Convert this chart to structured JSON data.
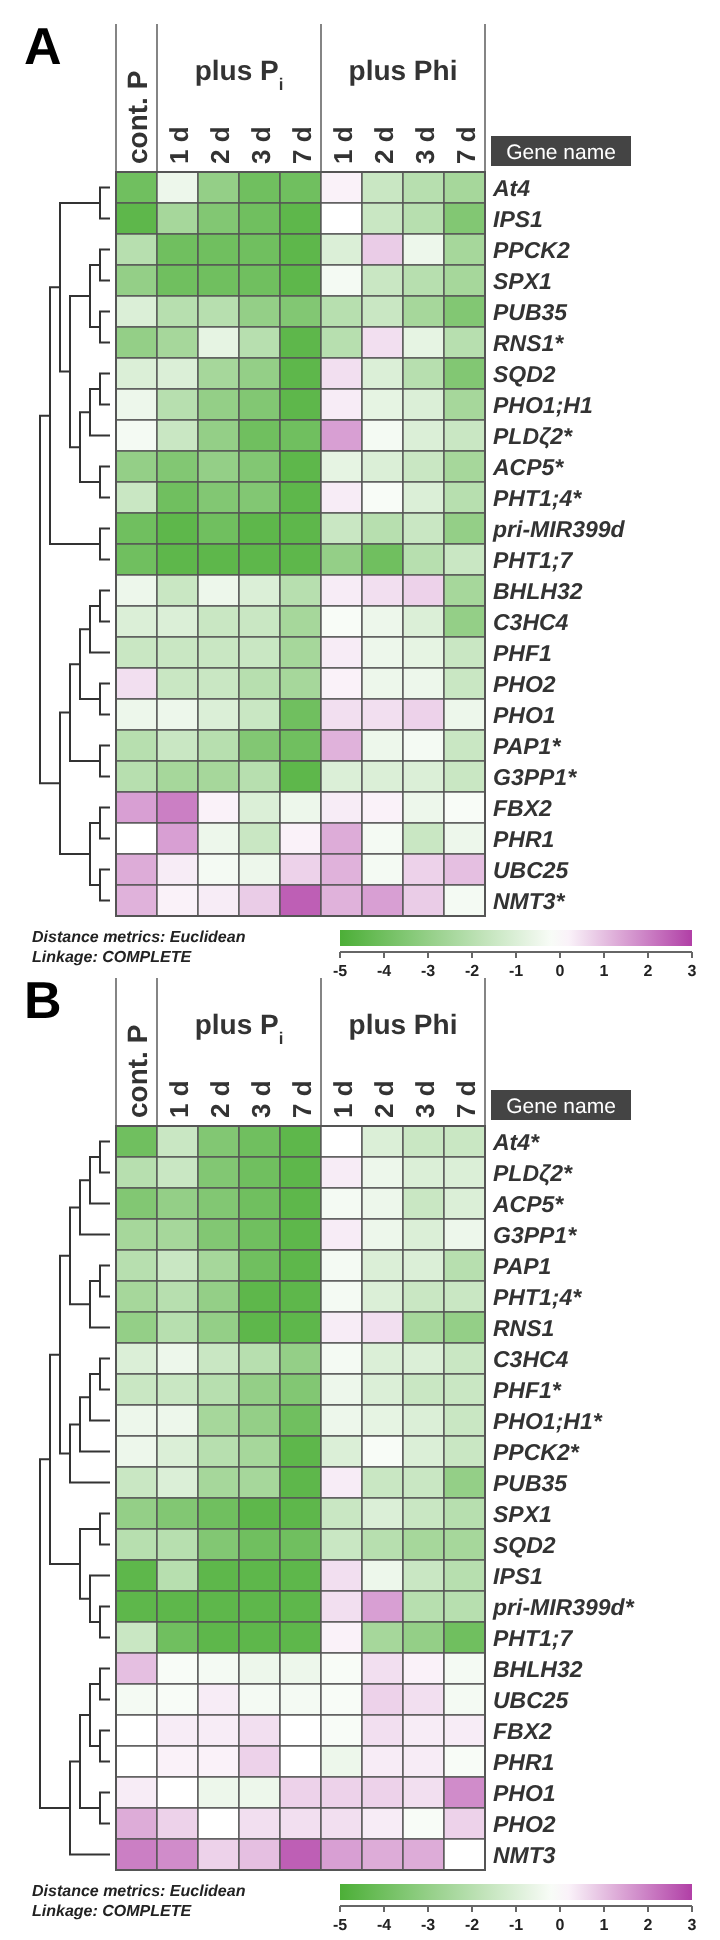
{
  "chart_data": [
    {
      "type": "heatmap",
      "title": "A",
      "ylabel": "Gene name",
      "categories": [
        "cont. P",
        "1 d",
        "2 d",
        "3 d",
        "7 d",
        "1 d",
        "2 d",
        "3 d",
        "7 d"
      ],
      "y_categories": [
        "At4",
        "IPS1",
        "PPCK2",
        "SPX1",
        "PUB35",
        "RNS1*",
        "SQD2",
        "PHO1;H1",
        "PLDζ2*",
        "ACP5*",
        "PHT1;4*",
        "pri-MIR399d",
        "PHT1;7",
        "BHLH32",
        "C3HC4",
        "PHF1",
        "PHO2",
        "PHO1",
        "PAP1*",
        "G3PP1*",
        "FBX2",
        "PHR1",
        "UBC25",
        "NMT3*"
      ],
      "cells": [
        [
          -4,
          -0.5,
          -3,
          -4,
          -4,
          0.2,
          -1.5,
          -2,
          -2.5
        ],
        [
          -4.5,
          -2.5,
          -3.5,
          -4,
          -4.5,
          0,
          -1.5,
          -2,
          -3.5
        ],
        [
          -2,
          -4,
          -4,
          -4,
          -4.5,
          -1,
          0.8,
          -0.5,
          -2.5
        ],
        [
          -3,
          -4,
          -4,
          -4,
          -4.5,
          -0.3,
          -1.5,
          -2,
          -2.5
        ],
        [
          -1,
          -2,
          -2,
          -3,
          -3.5,
          -2,
          -1.5,
          -2.5,
          -3.5
        ],
        [
          -3,
          -2.5,
          -0.7,
          -2,
          -4.5,
          -2,
          0.5,
          -0.7,
          -2
        ],
        [
          -1,
          -1,
          -2.5,
          -3,
          -4.5,
          0.5,
          -1,
          -2,
          -3.5
        ],
        [
          -0.5,
          -2,
          -3,
          -3.5,
          -4.5,
          0.3,
          -0.7,
          -1,
          -2.5
        ],
        [
          -0.3,
          -1.5,
          -3,
          -4,
          -4,
          1.5,
          -0.3,
          -1,
          -1.5
        ],
        [
          -3,
          -3.5,
          -3,
          -3.5,
          -4.5,
          -0.7,
          -1,
          -1.5,
          -2.5
        ],
        [
          -1.5,
          -4,
          -3.5,
          -3.5,
          -4.5,
          0.3,
          -0.2,
          -1,
          -2
        ],
        [
          -4,
          -4.5,
          -4,
          -4.5,
          -4.5,
          -1.5,
          -2,
          -1.5,
          -3
        ],
        [
          -4,
          -4.5,
          -4.5,
          -4.5,
          -4.5,
          -3,
          -4,
          -2,
          -1.5
        ],
        [
          -0.5,
          -1.5,
          -0.5,
          -1,
          -2,
          0.3,
          0.5,
          0.7,
          -2.5
        ],
        [
          -1,
          -1,
          -1.5,
          -1.5,
          -2.5,
          -0.2,
          -0.5,
          -1,
          -3
        ],
        [
          -1.5,
          -1.5,
          -1.5,
          -1.5,
          -2.5,
          0.3,
          -0.5,
          -0.7,
          -1.5
        ],
        [
          0.5,
          -1.5,
          -1.5,
          -2,
          -2.5,
          0.2,
          -0.5,
          -0.5,
          -1.5
        ],
        [
          -0.5,
          -0.5,
          -1,
          -1.5,
          -4,
          0.5,
          0.5,
          0.7,
          -0.5
        ],
        [
          -2,
          -1.5,
          -2,
          -3.5,
          -4,
          1.2,
          -0.5,
          -0.3,
          -1.5
        ],
        [
          -2,
          -2.5,
          -2.5,
          -2,
          -4.5,
          -1,
          -1,
          -1,
          -1.5
        ],
        [
          1.5,
          2,
          0.2,
          -1,
          -0.5,
          0.3,
          0.2,
          -0.5,
          -0.2
        ],
        [
          0,
          1.5,
          -0.5,
          -1.5,
          0.2,
          1.3,
          -0.3,
          -1.5,
          -0.5
        ],
        [
          1.3,
          0.3,
          -0.3,
          -0.5,
          0.7,
          1.2,
          -0.3,
          0.7,
          1
        ],
        [
          1.2,
          0.2,
          0.3,
          0.8,
          2.5,
          1.2,
          1.5,
          0.8,
          -0.3
        ]
      ],
      "clim": [
        -5,
        3
      ],
      "cticks": [
        -5,
        -4,
        -3,
        -2,
        -1,
        0,
        1,
        2,
        3
      ],
      "annotations": [
        "plus P$_{i}$",
        "plus Phi",
        "Distance metrics: Euclidean",
        "Linkage: COMPLETE"
      ]
    },
    {
      "type": "heatmap",
      "title": "B",
      "ylabel": "Gene name",
      "categories": [
        "cont. P",
        "1 d",
        "2 d",
        "3 d",
        "7 d",
        "1 d",
        "2 d",
        "3 d",
        "7 d"
      ],
      "y_categories": [
        "At4*",
        "PLDζ2*",
        "ACP5*",
        "G3PP1*",
        "PAP1",
        "PHT1;4*",
        "RNS1",
        "C3HC4",
        "PHF1*",
        "PHO1;H1*",
        "PPCK2*",
        "PUB35",
        "SPX1",
        "SQD2",
        "IPS1",
        "pri-MIR399d*",
        "PHT1;7",
        "BHLH32",
        "UBC25",
        "FBX2",
        "PHR1",
        "PHO1",
        "PHO2",
        "NMT3"
      ],
      "cells": [
        [
          -4,
          -1.5,
          -3.5,
          -4,
          -4.5,
          0,
          -1,
          -1.5,
          -1.5
        ],
        [
          -2,
          -1.5,
          -3.5,
          -4,
          -4.5,
          0.3,
          -0.5,
          -1,
          -1
        ],
        [
          -3.5,
          -3,
          -3.5,
          -4,
          -4.5,
          -0.3,
          -0.5,
          -1.5,
          -1
        ],
        [
          -2.5,
          -2.5,
          -3.5,
          -4,
          -4.5,
          0.3,
          -0.5,
          -1,
          -0.5
        ],
        [
          -2,
          -1.5,
          -2.5,
          -4,
          -4.5,
          -0.3,
          -1,
          -1,
          -2
        ],
        [
          -2.5,
          -2,
          -3,
          -4.5,
          -4.5,
          -0.3,
          -1,
          -1.5,
          -1.5
        ],
        [
          -3,
          -2,
          -3,
          -4.5,
          -4.5,
          0.3,
          0.5,
          -2.5,
          -3
        ],
        [
          -1,
          -0.5,
          -1.5,
          -2,
          -3,
          -0.3,
          -1,
          -1,
          -1.5
        ],
        [
          -1.5,
          -1.5,
          -2,
          -3,
          -3.5,
          -0.5,
          -1,
          -1.5,
          -1.5
        ],
        [
          -0.5,
          -0.5,
          -2.5,
          -3,
          -4,
          -0.5,
          -0.7,
          -1,
          -1.5
        ],
        [
          -0.5,
          -1,
          -2,
          -2.5,
          -4.5,
          -1,
          -0.2,
          -1,
          -1.5
        ],
        [
          -1.5,
          -1,
          -2.5,
          -2.5,
          -4.5,
          0.3,
          -1.5,
          -1.5,
          -3
        ],
        [
          -3,
          -3.5,
          -4,
          -4.5,
          -4.5,
          -1.5,
          -1,
          -1.5,
          -2
        ],
        [
          -2,
          -2,
          -3.5,
          -4,
          -4,
          -1.5,
          -2,
          -2.5,
          -2.5
        ],
        [
          -4.5,
          -2,
          -4.5,
          -4.5,
          -4.5,
          0.5,
          -0.5,
          -1.5,
          -2
        ],
        [
          -4.5,
          -4.5,
          -4.5,
          -4.5,
          -4.5,
          0.5,
          1.5,
          -2,
          -2
        ],
        [
          -1.5,
          -4,
          -4.5,
          -4.5,
          -4.5,
          0.2,
          -2.5,
          -3,
          -4
        ],
        [
          1,
          -0.2,
          -0.3,
          -0.5,
          -0.5,
          -0.2,
          0.5,
          0.2,
          -0.3
        ],
        [
          -0.3,
          -0.2,
          0.3,
          -0.3,
          -0.3,
          -0.2,
          0.7,
          0.5,
          -0.3
        ],
        [
          0,
          0.3,
          0.3,
          0.5,
          0,
          -0.2,
          0.5,
          0.3,
          0.3
        ],
        [
          0,
          0.2,
          0.2,
          0.7,
          0,
          -0.5,
          0.3,
          0.3,
          -0.2
        ],
        [
          0.3,
          0,
          -0.5,
          -0.5,
          0.7,
          0.7,
          0.7,
          0.5,
          1.8
        ],
        [
          1.3,
          0.7,
          0,
          0.5,
          0.5,
          0.5,
          0.3,
          -0.2,
          0.7
        ],
        [
          2,
          1.8,
          0.7,
          1,
          2.5,
          1.5,
          1.3,
          1.3,
          0
        ]
      ],
      "clim": [
        -5,
        3
      ],
      "cticks": [
        -5,
        -4,
        -3,
        -2,
        -1,
        0,
        1,
        2,
        3
      ],
      "annotations": [
        "plus P$_{i}$",
        "plus Phi",
        "Distance metrics: Euclidean",
        "Linkage: COMPLETE"
      ]
    }
  ]
}
